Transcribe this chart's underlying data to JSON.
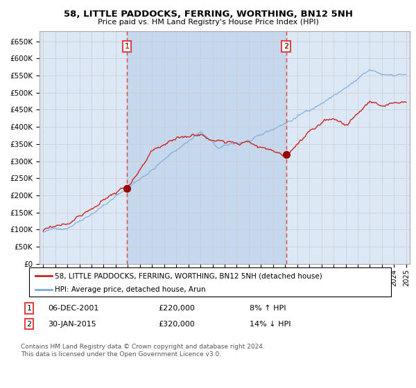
{
  "title": "58, LITTLE PADDOCKS, FERRING, WORTHING, BN12 5NH",
  "subtitle": "Price paid vs. HM Land Registry's House Price Index (HPI)",
  "ylim": [
    0,
    680000
  ],
  "yticks": [
    0,
    50000,
    100000,
    150000,
    200000,
    250000,
    300000,
    350000,
    400000,
    450000,
    500000,
    550000,
    600000,
    650000
  ],
  "xlim_start": 1994.7,
  "xlim_end": 2025.3,
  "grid_color": "#cccccc",
  "plot_bg_color": "#dce8f5",
  "shade_color": "#c5d8ed",
  "sale1_x": 2001.92,
  "sale1_y": 220000,
  "sale1_date": "06-DEC-2001",
  "sale1_price": "£220,000",
  "sale1_hpi": "8% ↑ HPI",
  "sale2_x": 2015.08,
  "sale2_y": 320000,
  "sale2_date": "30-JAN-2015",
  "sale2_price": "£320,000",
  "sale2_hpi": "14% ↓ HPI",
  "legend_line1": "58, LITTLE PADDOCKS, FERRING, WORTHING, BN12 5NH (detached house)",
  "legend_line2": "HPI: Average price, detached house, Arun",
  "footer1": "Contains HM Land Registry data © Crown copyright and database right 2024.",
  "footer2": "This data is licensed under the Open Government Licence v3.0.",
  "red_color": "#cc2222",
  "blue_color": "#7aaadd",
  "dashed_color": "#dd4444"
}
